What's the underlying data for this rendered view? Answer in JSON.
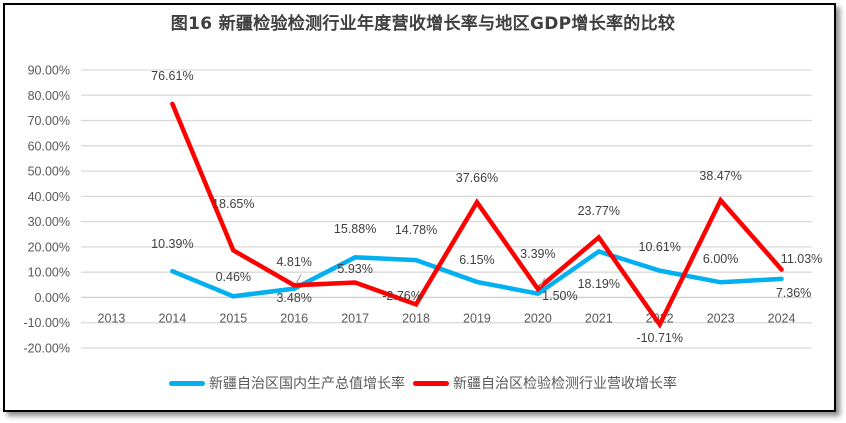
{
  "chart_data": {
    "type": "line",
    "title": "图16  新疆检验检测行业年度营收增长率与地区GDP增长率的比较",
    "xlabel": "",
    "ylabel": "",
    "categories": [
      "2013",
      "2014",
      "2015",
      "2016",
      "2017",
      "2018",
      "2019",
      "2020",
      "2021",
      "2022",
      "2023",
      "2024"
    ],
    "ylim": [
      -20,
      90
    ],
    "yticks": [
      "90.00%",
      "80.00%",
      "70.00%",
      "60.00%",
      "50.00%",
      "40.00%",
      "30.00%",
      "20.00%",
      "10.00%",
      "0.00%",
      "-10.00%",
      "-20.00%"
    ],
    "ytick_values": [
      90,
      80,
      70,
      60,
      50,
      40,
      30,
      20,
      10,
      0,
      -10,
      -20
    ],
    "grid": true,
    "legend_position": "bottom",
    "series": [
      {
        "name": "新疆自治区国内生产总值增长率",
        "color": "#00B0F0",
        "values": [
          null,
          10.39,
          0.46,
          3.48,
          15.88,
          14.78,
          6.15,
          1.5,
          18.19,
          10.61,
          6.0,
          7.36
        ],
        "labels": [
          null,
          "10.39%",
          "0.46%",
          "3.48%",
          "15.88%",
          "14.78%",
          "6.15%",
          "1.50%",
          "18.19%",
          "10.61%",
          "6.00%",
          "7.36%"
        ]
      },
      {
        "name": "新疆自治区检验检测行业营收增长率",
        "color": "#FF0000",
        "values": [
          null,
          76.61,
          18.65,
          4.81,
          5.93,
          -2.76,
          37.66,
          3.39,
          23.77,
          -10.71,
          38.47,
          11.03
        ],
        "labels": [
          null,
          "76.61%",
          "18.65%",
          "4.81%",
          "5.93%",
          "-2.76%",
          "37.66%",
          "3.39%",
          "23.77%",
          "-10.71%",
          "38.47%",
          "11.03%"
        ]
      }
    ]
  }
}
